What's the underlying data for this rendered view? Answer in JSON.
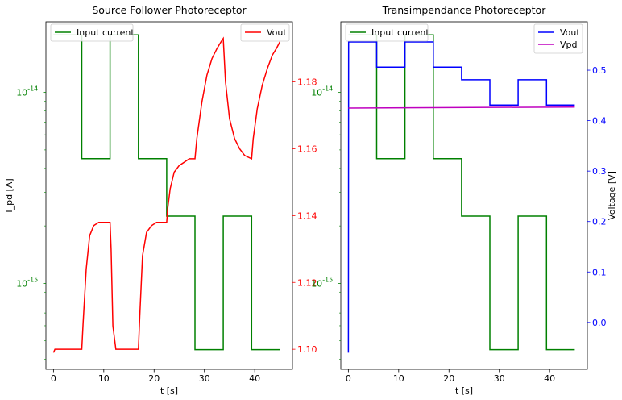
{
  "chart_data": [
    {
      "type": "line",
      "title": "Source Follower Photoreceptor",
      "xlabel": "t [s]",
      "ylabel": "I_pd [A]",
      "xlim": [
        -1.5,
        47.5
      ],
      "ylim_log10": [
        -15.45,
        -13.63
      ],
      "y2lim": [
        1.094,
        1.198
      ],
      "xticks": [
        0,
        10,
        20,
        30,
        40
      ],
      "yticks_log10": [
        -15,
        -14
      ],
      "yticklabels": [
        "10^{-15}",
        "10^{-14}"
      ],
      "y2ticks": [
        1.1,
        1.12,
        1.14,
        1.16,
        1.18
      ],
      "y2ticklabels": [
        "1.10",
        "1.12",
        "1.14",
        "1.16",
        "1.18"
      ],
      "grid": false,
      "legend": [
        {
          "name": "Input current",
          "position": "upper-left",
          "color": "#008000"
        },
        {
          "name": "Vout",
          "position": "upper-right",
          "color": "#ff0000"
        }
      ],
      "series": [
        {
          "name": "Input current",
          "axis": "left",
          "color": "#008000",
          "shape": "step",
          "x": [
            0,
            5.63,
            5.63,
            11.25,
            11.25,
            16.88,
            16.88,
            22.5,
            22.5,
            28.13,
            28.13,
            33.75,
            33.75,
            39.38,
            39.38,
            45
          ],
          "y": [
            2e-14,
            2e-14,
            4.5e-15,
            4.5e-15,
            2e-14,
            2e-14,
            4.5e-15,
            4.5e-15,
            2.25e-15,
            2.25e-15,
            4.5e-16,
            4.5e-16,
            2.25e-15,
            2.25e-15,
            4.5e-16,
            4.5e-16
          ]
        },
        {
          "name": "Vout",
          "axis": "right",
          "color": "#ff0000",
          "x": [
            0,
            0.3,
            5.63,
            5.9,
            6.5,
            7.2,
            8.0,
            9.0,
            10.0,
            11.25,
            11.45,
            11.8,
            12.4,
            13.2,
            14.0,
            15.5,
            16.88,
            17.15,
            17.7,
            18.5,
            19.5,
            20.5,
            22.5,
            22.7,
            23.2,
            24.0,
            25.0,
            26.0,
            27.0,
            28.13,
            28.5,
            29.5,
            30.5,
            31.5,
            32.5,
            33.3,
            33.75,
            34.2,
            35.0,
            36.0,
            37.0,
            38.0,
            39.38,
            39.7,
            40.5,
            41.5,
            42.5,
            43.5,
            44.3,
            45
          ],
          "y": [
            1.099,
            1.1,
            1.1,
            1.108,
            1.124,
            1.134,
            1.137,
            1.138,
            1.138,
            1.138,
            1.13,
            1.107,
            1.1,
            1.1,
            1.1,
            1.1,
            1.1,
            1.11,
            1.128,
            1.135,
            1.137,
            1.138,
            1.138,
            1.142,
            1.148,
            1.153,
            1.155,
            1.156,
            1.157,
            1.157,
            1.163,
            1.174,
            1.182,
            1.187,
            1.19,
            1.192,
            1.193,
            1.18,
            1.169,
            1.163,
            1.16,
            1.158,
            1.157,
            1.163,
            1.172,
            1.179,
            1.184,
            1.188,
            1.19,
            1.192
          ]
        }
      ]
    },
    {
      "type": "line",
      "title": "Transimpendance Photoreceptor",
      "xlabel": "t [s]",
      "ylabel": "Voltage [V]",
      "xlim": [
        -1.5,
        47.5
      ],
      "ylim_log10": [
        -15.45,
        -13.63
      ],
      "y2lim": [
        -0.093,
        0.596
      ],
      "xticks": [
        0,
        10,
        20,
        30,
        40
      ],
      "yticks_log10": [
        -15,
        -14
      ],
      "yticklabels": [
        "10^{-15}",
        "10^{-14}"
      ],
      "y2ticks": [
        0.0,
        0.1,
        0.2,
        0.3,
        0.4,
        0.5
      ],
      "y2ticklabels": [
        "0.0",
        "0.1",
        "0.2",
        "0.3",
        "0.4",
        "0.5"
      ],
      "grid": false,
      "legend": [
        {
          "name": "Input current",
          "position": "upper-left",
          "color": "#008000"
        },
        {
          "name": "Vout",
          "position": "upper-right",
          "color": "#0000ff"
        },
        {
          "name": "Vpd",
          "position": "upper-right",
          "color": "#bf00bf"
        }
      ],
      "series": [
        {
          "name": "Input current",
          "axis": "left",
          "color": "#008000",
          "shape": "step",
          "x": [
            0,
            5.63,
            5.63,
            11.25,
            11.25,
            16.88,
            16.88,
            22.5,
            22.5,
            28.13,
            28.13,
            33.75,
            33.75,
            39.38,
            39.38,
            45
          ],
          "y": [
            2e-14,
            2e-14,
            4.5e-15,
            4.5e-15,
            2e-14,
            2e-14,
            4.5e-15,
            4.5e-15,
            2.25e-15,
            2.25e-15,
            4.5e-16,
            4.5e-16,
            2.25e-15,
            2.25e-15,
            4.5e-16,
            4.5e-16
          ]
        },
        {
          "name": "Vout",
          "axis": "right",
          "color": "#0000ff",
          "x": [
            0,
            0.05,
            0.1,
            5.63,
            5.63,
            11.25,
            11.25,
            16.88,
            16.88,
            22.5,
            22.5,
            28.13,
            28.13,
            33.75,
            33.75,
            39.38,
            39.38,
            45
          ],
          "y": [
            -0.06,
            0.556,
            0.556,
            0.556,
            0.506,
            0.506,
            0.556,
            0.556,
            0.506,
            0.506,
            0.481,
            0.481,
            0.431,
            0.431,
            0.481,
            0.481,
            0.431,
            0.431
          ],
          "extra_segment": {
            "x": [
              0,
              0
            ],
            "y": [
              -0.06,
              0.556
            ]
          }
        },
        {
          "name": "Vpd",
          "axis": "right",
          "color": "#bf00bf",
          "x": [
            0,
            45
          ],
          "y": [
            0.425,
            0.427
          ]
        }
      ]
    }
  ]
}
